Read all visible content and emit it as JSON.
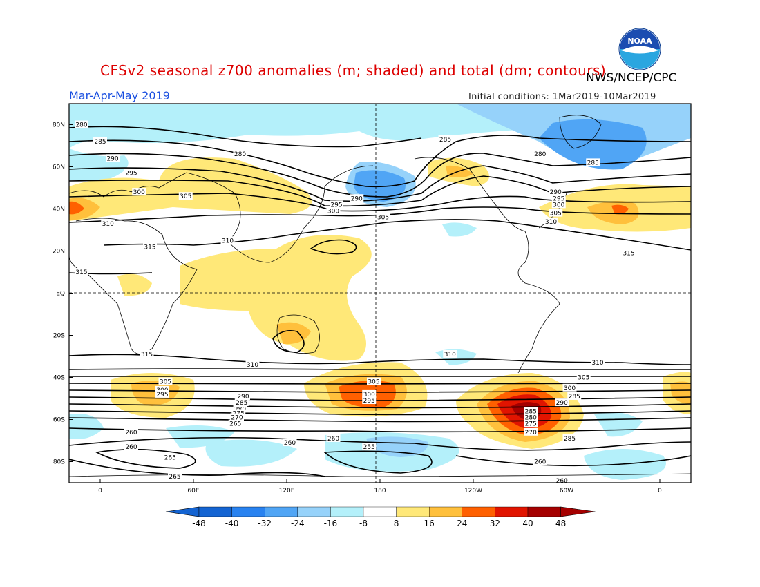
{
  "title": "CFSv2 seasonal z700 anomalies (m; shaded) and total (dm; contours)",
  "agency": "NWS/NCEP/CPC",
  "season": "Mar-Apr-May 2019",
  "initial_conditions": "Initial conditions: 1Mar2019-10Mar2019",
  "logo_text": "NOAA",
  "lat_labels": [
    {
      "text": "80N",
      "lat": 80
    },
    {
      "text": "60N",
      "lat": 60
    },
    {
      "text": "40N",
      "lat": 40
    },
    {
      "text": "20N",
      "lat": 20
    },
    {
      "text": "EQ",
      "lat": 0
    },
    {
      "text": "20S",
      "lat": -20
    },
    {
      "text": "40S",
      "lat": -40
    },
    {
      "text": "60S",
      "lat": -60
    },
    {
      "text": "80S",
      "lat": -80
    }
  ],
  "lon_labels": [
    {
      "text": "0",
      "lon": 0
    },
    {
      "text": "60E",
      "lon": 60
    },
    {
      "text": "120E",
      "lon": 120
    },
    {
      "text": "180",
      "lon": 180
    },
    {
      "text": "120W",
      "lon": 240
    },
    {
      "text": "60W",
      "lon": 300
    },
    {
      "text": "0",
      "lon": 360
    }
  ],
  "colorbar": {
    "ticks": [
      "-48",
      "-40",
      "-32",
      "-24",
      "-16",
      "-8",
      "8",
      "16",
      "24",
      "32",
      "40",
      "48"
    ],
    "colors": [
      "#1464d2",
      "#2882f0",
      "#50a5f5",
      "#96d2fa",
      "#b4f0fa",
      "#ffffff",
      "#ffe878",
      "#ffc03c",
      "#ff6000",
      "#e11400",
      "#a50000"
    ],
    "low_color": "#1464d2",
    "high_color": "#a50000"
  },
  "contour_labels": [
    {
      "text": "280",
      "lon": -12,
      "lat": 80
    },
    {
      "text": "285",
      "lon": 0,
      "lat": 72
    },
    {
      "text": "290",
      "lon": 8,
      "lat": 64
    },
    {
      "text": "295",
      "lon": 20,
      "lat": 57
    },
    {
      "text": "300",
      "lon": 25,
      "lat": 48
    },
    {
      "text": "305",
      "lon": 55,
      "lat": 46
    },
    {
      "text": "310",
      "lon": 5,
      "lat": 33
    },
    {
      "text": "315",
      "lon": 32,
      "lat": 22
    },
    {
      "text": "315",
      "lon": -12,
      "lat": 10
    },
    {
      "text": "280",
      "lon": 90,
      "lat": 66
    },
    {
      "text": "290",
      "lon": 165,
      "lat": 45
    },
    {
      "text": "295",
      "lon": 152,
      "lat": 42
    },
    {
      "text": "300",
      "lon": 150,
      "lat": 39
    },
    {
      "text": "305",
      "lon": 182,
      "lat": 36
    },
    {
      "text": "310",
      "lon": 82,
      "lat": 25
    },
    {
      "text": "285",
      "lon": 222,
      "lat": 73
    },
    {
      "text": "280",
      "lon": 283,
      "lat": 66
    },
    {
      "text": "285",
      "lon": 317,
      "lat": 62
    },
    {
      "text": "290",
      "lon": 293,
      "lat": 48
    },
    {
      "text": "295",
      "lon": 295,
      "lat": 45
    },
    {
      "text": "300",
      "lon": 295,
      "lat": 42
    },
    {
      "text": "305",
      "lon": 293,
      "lat": 38
    },
    {
      "text": "310",
      "lon": 290,
      "lat": 34
    },
    {
      "text": "315",
      "lon": 340,
      "lat": 19
    },
    {
      "text": "315",
      "lon": 30,
      "lat": -29
    },
    {
      "text": "310",
      "lon": 98,
      "lat": -34
    },
    {
      "text": "310",
      "lon": 225,
      "lat": -29
    },
    {
      "text": "310",
      "lon": 320,
      "lat": -33
    },
    {
      "text": "305",
      "lon": 42,
      "lat": -42
    },
    {
      "text": "300",
      "lon": 40,
      "lat": -46
    },
    {
      "text": "295",
      "lon": 40,
      "lat": -48
    },
    {
      "text": "290",
      "lon": 92,
      "lat": -49
    },
    {
      "text": "285",
      "lon": 91,
      "lat": -52
    },
    {
      "text": "280",
      "lon": 90,
      "lat": -55
    },
    {
      "text": "275",
      "lon": 89,
      "lat": -57
    },
    {
      "text": "270",
      "lon": 88,
      "lat": -59
    },
    {
      "text": "265",
      "lon": 87,
      "lat": -62
    },
    {
      "text": "305",
      "lon": 176,
      "lat": -42
    },
    {
      "text": "300",
      "lon": 173,
      "lat": -48
    },
    {
      "text": "295",
      "lon": 173,
      "lat": -51
    },
    {
      "text": "305",
      "lon": 311,
      "lat": -40
    },
    {
      "text": "300",
      "lon": 302,
      "lat": -45
    },
    {
      "text": "285",
      "lon": 305,
      "lat": -49
    },
    {
      "text": "290",
      "lon": 297,
      "lat": -52
    },
    {
      "text": "285",
      "lon": 277,
      "lat": -56
    },
    {
      "text": "280",
      "lon": 277,
      "lat": -59
    },
    {
      "text": "275",
      "lon": 277,
      "lat": -62
    },
    {
      "text": "270",
      "lon": 277,
      "lat": -66
    },
    {
      "text": "285",
      "lon": 302,
      "lat": -69
    },
    {
      "text": "260",
      "lon": 20,
      "lat": -66
    },
    {
      "text": "260",
      "lon": 20,
      "lat": -73
    },
    {
      "text": "265",
      "lon": 45,
      "lat": -78
    },
    {
      "text": "265",
      "lon": 48,
      "lat": -87
    },
    {
      "text": "260",
      "lon": 150,
      "lat": -69
    },
    {
      "text": "260",
      "lon": 122,
      "lat": -71
    },
    {
      "text": "255",
      "lon": 173,
      "lat": -73
    },
    {
      "text": "260",
      "lon": 283,
      "lat": -80
    },
    {
      "text": "260",
      "lon": 297,
      "lat": -89
    }
  ]
}
